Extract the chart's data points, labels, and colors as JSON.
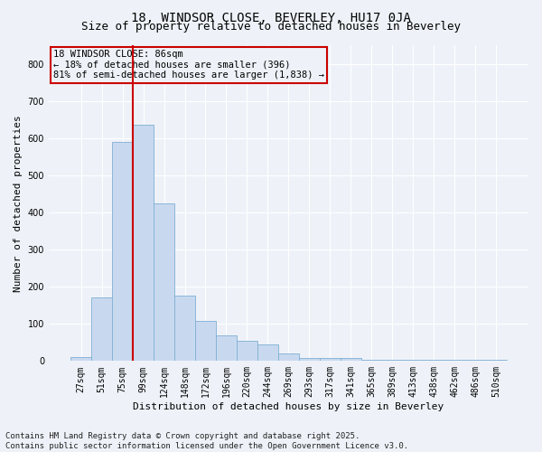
{
  "title1": "18, WINDSOR CLOSE, BEVERLEY, HU17 0JA",
  "title2": "Size of property relative to detached houses in Beverley",
  "xlabel": "Distribution of detached houses by size in Beverley",
  "ylabel": "Number of detached properties",
  "categories": [
    "27sqm",
    "51sqm",
    "75sqm",
    "99sqm",
    "124sqm",
    "148sqm",
    "172sqm",
    "196sqm",
    "220sqm",
    "244sqm",
    "269sqm",
    "293sqm",
    "317sqm",
    "341sqm",
    "365sqm",
    "389sqm",
    "413sqm",
    "438sqm",
    "462sqm",
    "486sqm",
    "510sqm"
  ],
  "values": [
    10,
    170,
    590,
    635,
    425,
    175,
    108,
    70,
    55,
    45,
    20,
    7,
    7,
    7,
    4,
    4,
    4,
    4,
    4,
    4,
    4
  ],
  "bar_color": "#c8d9ef",
  "bar_edge_color": "#7fafd4",
  "vline_color": "#cc0000",
  "vline_pos": 2.5,
  "annotation_text_line1": "18 WINDSOR CLOSE: 86sqm",
  "annotation_text_line2": "← 18% of detached houses are smaller (396)",
  "annotation_text_line3": "81% of semi-detached houses are larger (1,838) →",
  "annotation_box_color": "#cc0000",
  "ylim": [
    0,
    850
  ],
  "yticks": [
    0,
    100,
    200,
    300,
    400,
    500,
    600,
    700,
    800
  ],
  "footer_line1": "Contains HM Land Registry data © Crown copyright and database right 2025.",
  "footer_line2": "Contains public sector information licensed under the Open Government Licence v3.0.",
  "bg_color": "#eef2f8",
  "grid_color": "#ffffff",
  "title_fontsize": 10,
  "subtitle_fontsize": 9,
  "axis_label_fontsize": 8,
  "tick_fontsize": 7,
  "annotation_fontsize": 7.5,
  "footer_fontsize": 6.5
}
